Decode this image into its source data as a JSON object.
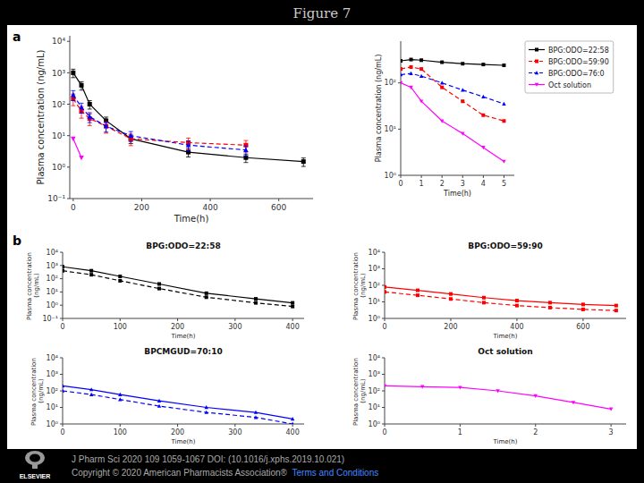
{
  "title": "Figure 7",
  "annotations": [
    {
      "text": "J Pharm Sci 2020 109 1059-1067 DOI: (10.1016/j.xphs.2019.10.021)",
      "color": "#aaaaaa"
    },
    {
      "text": "Copyright © 2020 American Pharmacists Association®  ",
      "color": "#aaaaaa"
    },
    {
      "text": "Terms and Conditions",
      "color": "#4488ff"
    },
    {
      "text": "ELSEVIER",
      "color": "#ffffff"
    }
  ],
  "chart_data": [
    {
      "type": "line",
      "xlabel": "Time(h)",
      "ylabel": "Plasma concentration (ng/mL)",
      "log": "y",
      "xlim": [
        -10,
        700
      ],
      "ylim": [
        0.1,
        15000
      ],
      "xticks": [
        0,
        200,
        400,
        600
      ],
      "yticks": [
        {
          "value": 0.1,
          "label": "10⁻¹"
        },
        {
          "value": 1,
          "label": "10⁰"
        },
        {
          "value": 10,
          "label": "10¹"
        },
        {
          "value": 100,
          "label": "10²"
        },
        {
          "value": 1000,
          "label": "10³"
        },
        {
          "value": 10000,
          "label": "10⁴"
        }
      ],
      "annotations": [
        "a"
      ],
      "series": [
        {
          "color": "#000000",
          "marker": "square",
          "line_style": "solid",
          "x": [
            0,
            24,
            48,
            96,
            168,
            336,
            504,
            672
          ],
          "values": [
            1000,
            400,
            100,
            30,
            8,
            3,
            2,
            1.5
          ],
          "errors": [
            300,
            120,
            30,
            9,
            2.4,
            0.9,
            0.6,
            0.45
          ]
        },
        {
          "color": "#ff0000",
          "marker": "square",
          "line_style": "dashed",
          "x": [
            0,
            24,
            48,
            96,
            168,
            336,
            504
          ],
          "values": [
            150,
            60,
            35,
            20,
            8,
            6,
            5
          ],
          "errors": [
            60,
            24,
            14,
            8,
            3.2,
            2.4,
            2
          ]
        },
        {
          "color": "#0000ff",
          "marker": "triangle-up",
          "line_style": "dashed",
          "x": [
            0,
            24,
            48,
            96,
            168,
            336,
            504
          ],
          "values": [
            200,
            80,
            40,
            20,
            10,
            5,
            3.5
          ],
          "errors": [
            70,
            28,
            14,
            7,
            3.5,
            1.75,
            1.225
          ]
        },
        {
          "color": "#ff00ff",
          "marker": "triangle-down",
          "line_style": "solid",
          "x": [
            0,
            24
          ],
          "values": [
            8,
            2
          ]
        }
      ]
    },
    {
      "type": "line",
      "xlabel": "Time(h)",
      "ylabel": "Plasma concentration (ng/mL)",
      "log": "y",
      "xlim": [
        0,
        5.5
      ],
      "ylim": [
        1,
        800
      ],
      "xticks": [
        0,
        1,
        2,
        3,
        4,
        5
      ],
      "yticks": [
        {
          "value": 1,
          "label": "10⁰"
        },
        {
          "value": 10,
          "label": "10¹"
        },
        {
          "value": 100,
          "label": "10²"
        }
      ],
      "legend": "upper right",
      "series": [
        {
          "name": "BPG:ODO=22:58",
          "color": "#000000",
          "marker": "square",
          "line_style": "solid",
          "x": [
            0,
            0.5,
            1,
            2,
            3,
            4,
            5
          ],
          "values": [
            300,
            320,
            310,
            280,
            260,
            250,
            240
          ]
        },
        {
          "name": "BPG:ODO=59:90",
          "color": "#ff0000",
          "marker": "square",
          "line_style": "dashed",
          "x": [
            0,
            0.5,
            1,
            2,
            3,
            4,
            5
          ],
          "values": [
            200,
            220,
            200,
            80,
            40,
            20,
            15
          ]
        },
        {
          "name": "BPG:ODO=76:0",
          "color": "#0000ff",
          "marker": "triangle-up",
          "line_style": "dashed",
          "x": [
            0,
            0.5,
            1,
            2,
            3,
            4,
            5
          ],
          "values": [
            150,
            160,
            140,
            100,
            70,
            50,
            35
          ]
        },
        {
          "name": "Oct solution",
          "color": "#ff00ff",
          "marker": "triangle-down",
          "line_style": "solid",
          "x": [
            0,
            0.5,
            1,
            2,
            3,
            4,
            5
          ],
          "values": [
            100,
            80,
            40,
            15,
            8,
            4,
            2
          ]
        }
      ]
    },
    {
      "type": "line",
      "title": "BPG:ODO=22:58",
      "xlabel": "Time(h)",
      "ylabel": "Plasma concentration (ng/mL)",
      "log": "y",
      "xlim": [
        0,
        420
      ],
      "ylim": [
        0.1,
        10000
      ],
      "xticks": [
        0,
        100,
        200,
        300,
        400
      ],
      "yticks": [
        {
          "value": 0.1,
          "label": "10⁻¹"
        },
        {
          "value": 1,
          "label": "10⁰"
        },
        {
          "value": 10,
          "label": "10¹"
        },
        {
          "value": 100,
          "label": "10²"
        },
        {
          "value": 1000,
          "label": "10³"
        },
        {
          "value": 10000,
          "label": "10⁴"
        }
      ],
      "annotations": [
        "b"
      ],
      "series": [
        {
          "color": "#000000",
          "marker": "square",
          "line_style": "solid",
          "x": [
            0,
            50,
            100,
            168,
            250,
            336,
            400
          ],
          "values": [
            800,
            400,
            150,
            40,
            8,
            3,
            1.5
          ]
        },
        {
          "color": "#000000",
          "marker": "square",
          "line_style": "dashed",
          "x": [
            0,
            50,
            100,
            168,
            250,
            336,
            400
          ],
          "values": [
            400,
            200,
            70,
            18,
            4,
            1.5,
            0.8
          ]
        }
      ]
    },
    {
      "type": "line",
      "title": "BPG:ODO=59:90",
      "xlabel": "Time(h)",
      "ylabel": "Plasma concentration (ng/mL)",
      "log": "y",
      "xlim": [
        0,
        730
      ],
      "ylim": [
        1,
        10000
      ],
      "xticks": [
        0,
        200,
        400,
        600
      ],
      "yticks": [
        {
          "value": 1,
          "label": "10⁰"
        },
        {
          "value": 10,
          "label": "10¹"
        },
        {
          "value": 100,
          "label": "10²"
        },
        {
          "value": 1000,
          "label": "10³"
        },
        {
          "value": 10000,
          "label": "10⁴"
        }
      ],
      "series": [
        {
          "color": "#ff0000",
          "marker": "square",
          "line_style": "solid",
          "x": [
            0,
            100,
            200,
            300,
            400,
            500,
            600,
            700
          ],
          "values": [
            80,
            50,
            30,
            18,
            12,
            9,
            7,
            6
          ]
        },
        {
          "color": "#ff0000",
          "marker": "square",
          "line_style": "dashed",
          "x": [
            0,
            100,
            200,
            300,
            400,
            500,
            600,
            700
          ],
          "values": [
            40,
            25,
            15,
            9,
            6,
            4.5,
            3.5,
            3
          ]
        }
      ]
    },
    {
      "type": "line",
      "title": "BPCMGUD=70:10",
      "xlabel": "Time(h)",
      "ylabel": "Plasma concentration (ng/mL)",
      "log": "y",
      "xlim": [
        0,
        420
      ],
      "ylim": [
        1,
        10000
      ],
      "xticks": [
        0,
        100,
        200,
        300,
        400
      ],
      "yticks": [
        {
          "value": 1,
          "label": "10⁰"
        },
        {
          "value": 10,
          "label": "10¹"
        },
        {
          "value": 100,
          "label": "10²"
        },
        {
          "value": 1000,
          "label": "10³"
        },
        {
          "value": 10000,
          "label": "10⁴"
        }
      ],
      "series": [
        {
          "color": "#0000ff",
          "marker": "triangle-up",
          "line_style": "solid",
          "x": [
            0,
            50,
            100,
            168,
            250,
            336,
            400
          ],
          "values": [
            200,
            120,
            60,
            25,
            10,
            5,
            2
          ]
        },
        {
          "color": "#0000ff",
          "marker": "triangle-up",
          "line_style": "dashed",
          "x": [
            0,
            50,
            100,
            168,
            250,
            336,
            400
          ],
          "values": [
            100,
            60,
            30,
            12,
            5,
            2.5,
            1
          ]
        }
      ]
    },
    {
      "type": "line",
      "title": "Oct solution",
      "xlabel": "Time(h)",
      "ylabel": "Plasma concentration (ng/mL)",
      "log": "y",
      "xlim": [
        0,
        3.2
      ],
      "ylim": [
        1,
        10000
      ],
      "xticks": [
        0,
        1,
        2,
        3
      ],
      "yticks": [
        {
          "value": 1,
          "label": "10⁰"
        },
        {
          "value": 10,
          "label": "10¹"
        },
        {
          "value": 100,
          "label": "10²"
        },
        {
          "value": 1000,
          "label": "10³"
        },
        {
          "value": 10000,
          "label": "10⁴"
        }
      ],
      "series": [
        {
          "color": "#ff00ff",
          "marker": "triangle-down",
          "line_style": "solid",
          "x": [
            0,
            0.5,
            1,
            1.5,
            2,
            2.5,
            3
          ],
          "values": [
            200,
            180,
            160,
            100,
            50,
            20,
            8
          ]
        }
      ]
    }
  ]
}
